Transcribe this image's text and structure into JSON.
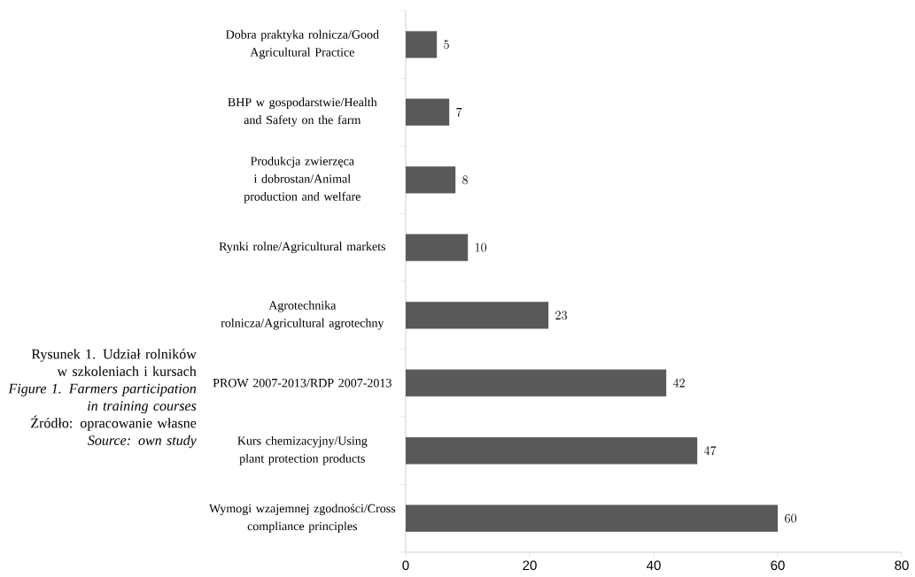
{
  "chart_data": {
    "type": "bar",
    "orientation": "horizontal",
    "categories": [
      "Dobra praktyka rolnicza/Good Agricultural Practice",
      "BHP w gospodarstwie/Health and Safety on the farm",
      "Produkcja zwierzęca i dobrostan/Animal production and welfare",
      "Rynki rolne/Agricultural markets",
      "Agrotechnika rolnicza/Agricultural agrotechny",
      "PROW 2007-2013/RDP 2007-2013",
      "Kurs chemizacyjny/Using plant protection products",
      "Wymogi wzajemnej zgodności/Cross compliance principles"
    ],
    "values": [
      5,
      7,
      8,
      10,
      23,
      42,
      47,
      60
    ],
    "color": "#595959",
    "xlim": [
      0,
      80
    ],
    "xticks": [
      0,
      20,
      40,
      60,
      80
    ],
    "data_labels": true,
    "annotations": [
      "Rysunek 1. Udział rolników w szkoleniach i kursach",
      "Figure 1. Farmers participation in training courses",
      "Źródło: opracowanie własne",
      "Source: own study"
    ]
  }
}
